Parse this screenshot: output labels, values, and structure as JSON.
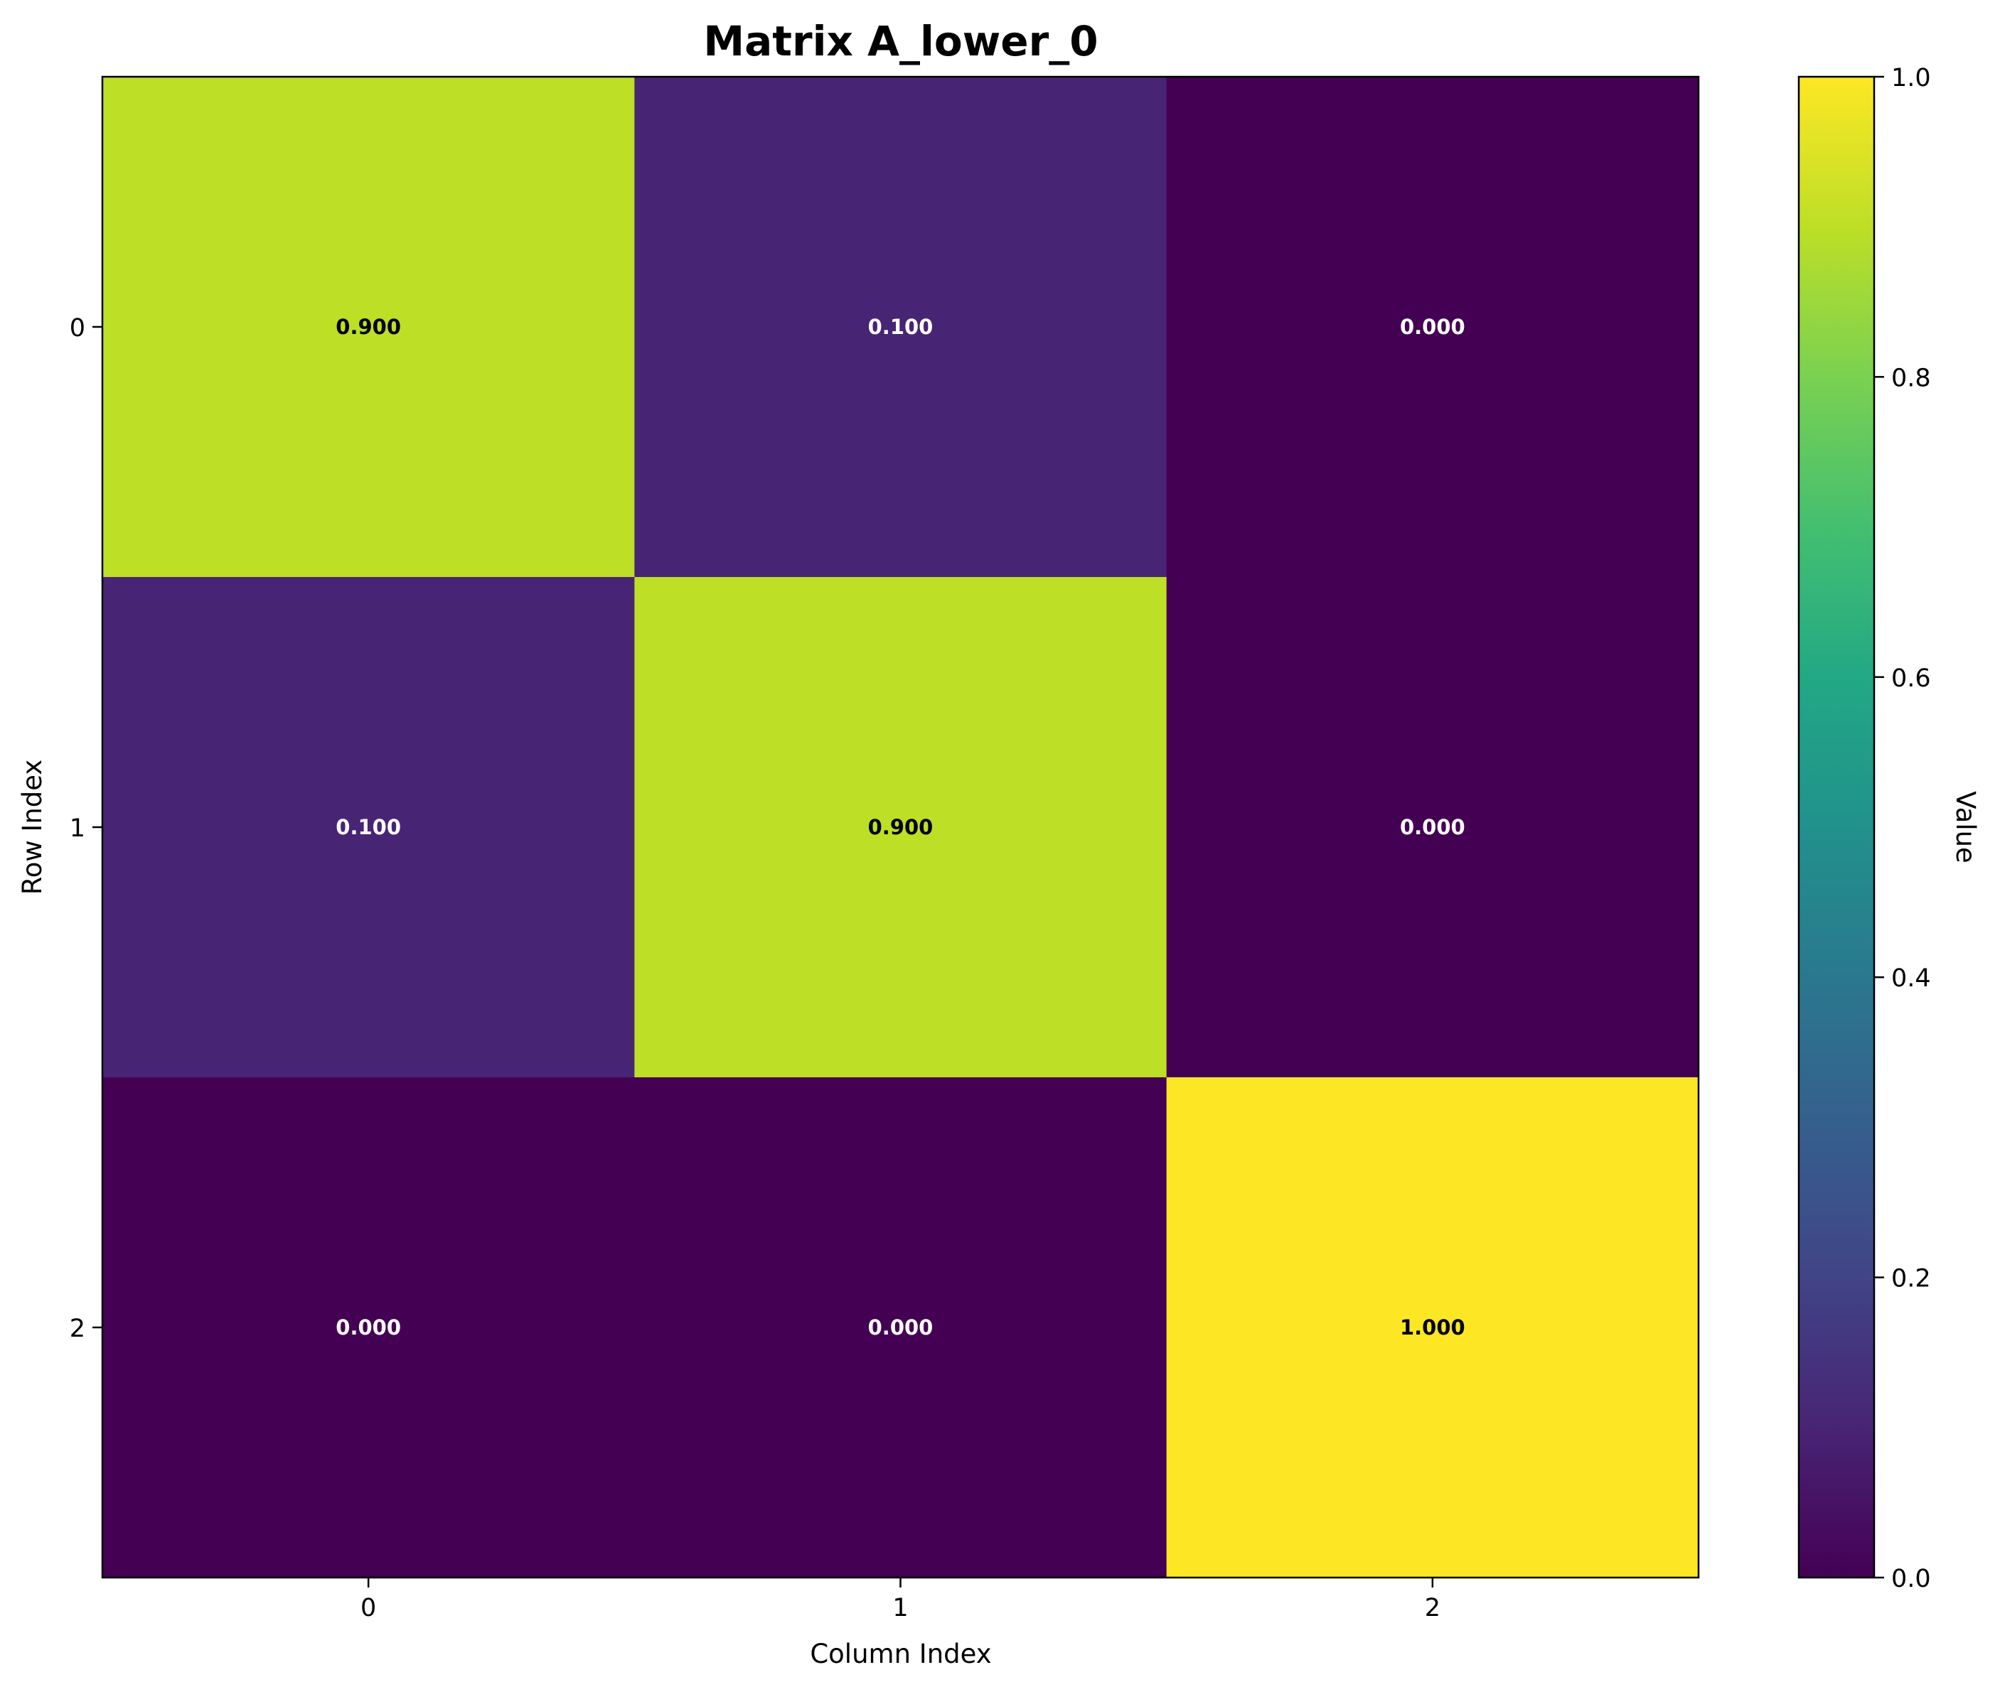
{
  "chart_data": {
    "type": "heatmap",
    "title": "Matrix A_lower_0",
    "xlabel": "Column Index",
    "ylabel": "Row Index",
    "x_ticks": [
      "0",
      "1",
      "2"
    ],
    "y_ticks": [
      "0",
      "1",
      "2"
    ],
    "values": [
      [
        0.9,
        0.1,
        0.0
      ],
      [
        0.1,
        0.9,
        0.0
      ],
      [
        0.0,
        0.0,
        1.0
      ]
    ],
    "cell_labels": [
      [
        "0.900",
        "0.100",
        "0.000"
      ],
      [
        "0.100",
        "0.900",
        "0.000"
      ],
      [
        "0.000",
        "0.000",
        "1.000"
      ]
    ],
    "colormap": "viridis",
    "vmin": 0.0,
    "vmax": 1.0,
    "colorbar": {
      "label": "Value",
      "ticks": [
        "0.0",
        "0.2",
        "0.4",
        "0.6",
        "0.8",
        "1.0"
      ],
      "tick_values": [
        0.0,
        0.2,
        0.4,
        0.6,
        0.8,
        1.0
      ]
    },
    "grid": false
  }
}
